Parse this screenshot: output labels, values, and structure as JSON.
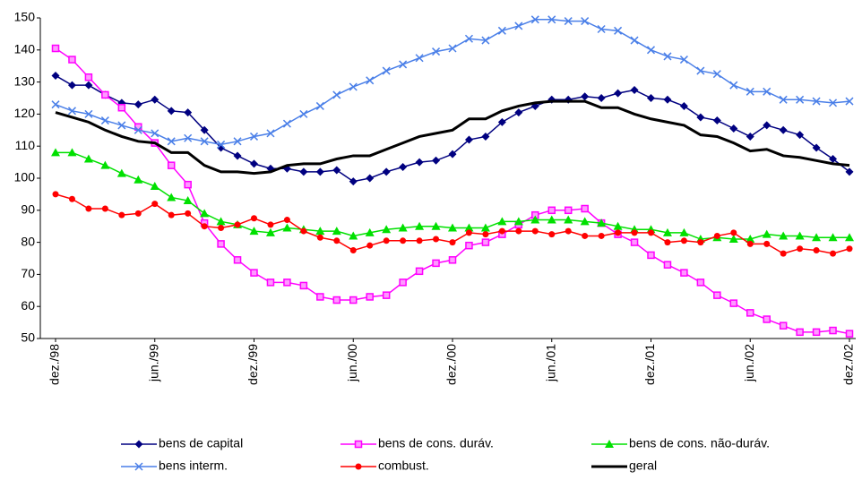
{
  "chart_data": {
    "type": "line",
    "categories": [
      "dez./98",
      null,
      null,
      null,
      null,
      null,
      "jun./99",
      null,
      null,
      null,
      null,
      null,
      "dez./99",
      null,
      null,
      null,
      null,
      null,
      "jun./00",
      null,
      null,
      null,
      null,
      null,
      "dez./00",
      null,
      null,
      null,
      null,
      null,
      "jun./01",
      null,
      null,
      null,
      null,
      null,
      "dez./01",
      null,
      null,
      null,
      null,
      null,
      "jun./02",
      null,
      null,
      null,
      null,
      null,
      "dez./02"
    ],
    "ylim": [
      50,
      150
    ],
    "yticks": [
      50,
      60,
      70,
      80,
      90,
      100,
      110,
      120,
      130,
      140,
      150
    ],
    "grid": false,
    "series": [
      {
        "name": "bens de capital",
        "color": "#000080",
        "marker": "diamond",
        "values": [
          132,
          129,
          129,
          126,
          123.5,
          123,
          124.5,
          121,
          120.5,
          115,
          109.5,
          107,
          104.5,
          103,
          103,
          102,
          102,
          102.5,
          99,
          100,
          102,
          103.5,
          105,
          105.5,
          107.5,
          112,
          113,
          117.5,
          120.5,
          122.5,
          124.5,
          124.5,
          125.5,
          125,
          126.5,
          127.5,
          125,
          124.5,
          122.5,
          119,
          118,
          115.5,
          113,
          116.5,
          115,
          113.5,
          109.5,
          106,
          102
        ]
      },
      {
        "name": "bens de cons. duráv.",
        "color": "#ff00ff",
        "marker": "square",
        "values": [
          140.5,
          137,
          131.5,
          126,
          122,
          116,
          111,
          104,
          98,
          86,
          79.5,
          74.5,
          70.5,
          67.5,
          67.5,
          66.5,
          63,
          62,
          62,
          63,
          63.5,
          67.5,
          71,
          73.5,
          74.5,
          79,
          80,
          82.5,
          85.5,
          88.5,
          90,
          90,
          90.5,
          86,
          82.5,
          80,
          76,
          73,
          70.5,
          67.5,
          63.5,
          61,
          58,
          56,
          54,
          52,
          52,
          52.5,
          51.5
        ]
      },
      {
        "name": "bens de cons. não-duráv.",
        "color": "#00e000",
        "marker": "triangle",
        "values": [
          108,
          108,
          106,
          104,
          101.5,
          99.5,
          97.5,
          94,
          93,
          89,
          86.5,
          85.5,
          83.5,
          83,
          84.5,
          84,
          83.5,
          83.5,
          82,
          83,
          84,
          84.5,
          85,
          85,
          84.5,
          84.5,
          84.5,
          86.5,
          86.5,
          87,
          87,
          87,
          86.5,
          86,
          85,
          84,
          84,
          83,
          83,
          81,
          81.5,
          81,
          81,
          82.5,
          82,
          82,
          81.5,
          81.5,
          81.5
        ]
      },
      {
        "name": "bens interm.",
        "color": "#4a7fe8",
        "marker": "cross",
        "values": [
          123,
          121,
          120,
          118,
          116.5,
          115,
          114,
          111.5,
          112.5,
          111.5,
          110.5,
          111.5,
          113,
          114,
          117,
          120,
          122.5,
          126,
          128.5,
          130.5,
          133.5,
          135.5,
          137.5,
          139.5,
          140.5,
          143.5,
          143,
          146,
          147.5,
          149.5,
          149.5,
          149,
          149,
          146.5,
          146,
          143,
          140,
          138,
          137,
          133.5,
          132.5,
          129,
          127,
          127,
          124.5,
          124.5,
          124,
          123.5,
          124
        ]
      },
      {
        "name": "combust.",
        "color": "#ff0000",
        "marker": "circle",
        "values": [
          95,
          93.5,
          90.5,
          90.5,
          88.5,
          89,
          92,
          88.5,
          89,
          85,
          84.5,
          85.5,
          87.5,
          85.5,
          87,
          83.5,
          81.5,
          80.5,
          77.5,
          79,
          80.5,
          80.5,
          80.5,
          81,
          80,
          83,
          82.5,
          83.5,
          83.5,
          83.5,
          82.5,
          83.5,
          82,
          82,
          83,
          83,
          83,
          80,
          80.5,
          80,
          82,
          83,
          79.5,
          79.5,
          76.5,
          78,
          77.5,
          76.5,
          78
        ]
      },
      {
        "name": "geral",
        "color": "#000000",
        "marker": "none",
        "values": [
          120.5,
          119,
          117.5,
          115,
          113,
          111.5,
          111,
          108,
          108,
          104,
          102,
          102,
          101.5,
          102,
          104,
          104.5,
          104.5,
          106,
          107,
          107,
          109,
          111,
          113,
          114,
          115,
          118.5,
          118.5,
          121,
          122.5,
          123.5,
          124,
          124,
          124,
          122,
          122,
          120,
          118.5,
          117.5,
          116.5,
          113.5,
          113,
          111,
          108.5,
          109,
          107,
          106.5,
          105.5,
          104.5,
          104
        ]
      }
    ]
  }
}
